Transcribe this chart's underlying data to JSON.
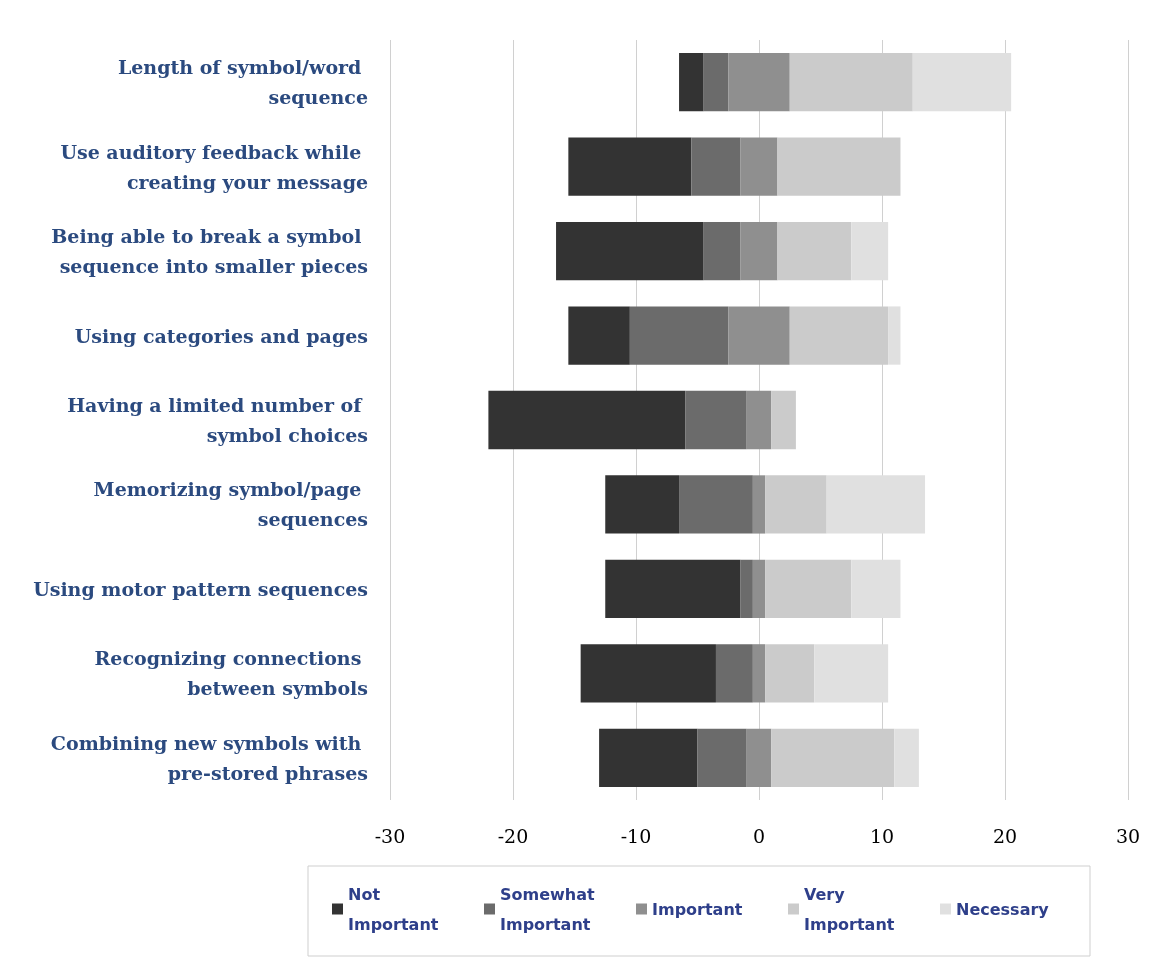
{
  "chart_data": {
    "type": "bar",
    "orientation": "horizontal",
    "categories": [
      "Length of symbol/word sequence",
      "Use auditory feedback while creating your message",
      "Being able to break a symbol sequence into smaller pieces",
      "Using categories and pages",
      "Having a limited number of symbol choices",
      "Memorizing symbol/page sequences",
      "Using motor pattern sequences",
      "Recognizing connections between symbols",
      "Combining new symbols with pre-stored phrases"
    ],
    "series": [
      {
        "name": "Not Important",
        "color": "#333333",
        "values": [
          2,
          10,
          12,
          5,
          16,
          6,
          11,
          11,
          8
        ],
        "base": [
          -6.5,
          -15.5,
          -16.5,
          -15.5,
          -22,
          -12.5,
          -12.5,
          -14.5,
          -13
        ]
      },
      {
        "name": "Somewhat Important",
        "color": "#6b6b6b",
        "values": [
          2,
          4,
          3,
          8,
          5,
          6,
          1,
          3,
          4
        ],
        "base": [
          -4.5,
          -5.5,
          -4.5,
          -10.5,
          -6,
          -6.5,
          -1.5,
          -3.5,
          -5
        ]
      },
      {
        "name": "Important",
        "color": "#8f8f8f",
        "values": [
          5,
          3,
          3,
          5,
          2,
          1,
          1,
          1,
          2
        ],
        "base": [
          -2.5,
          -1.5,
          -1.5,
          -2.5,
          -1,
          -0.5,
          -0.5,
          -0.5,
          -1
        ]
      },
      {
        "name": "Very Important",
        "color": "#cbcbcb",
        "values": [
          10,
          10,
          6,
          8,
          2,
          5,
          7,
          4,
          10
        ],
        "base": [
          2.5,
          1.5,
          1.5,
          2.5,
          1,
          0.5,
          0.5,
          0.5,
          1
        ]
      },
      {
        "name": "Necessary",
        "color": "#e0e0e0",
        "values": [
          8,
          null,
          3,
          1,
          null,
          8,
          4,
          6,
          2
        ],
        "base": [
          12.5,
          null,
          7.5,
          10.5,
          null,
          5.5,
          7.5,
          4.5,
          11
        ]
      }
    ],
    "xlim": [
      -30,
      30
    ],
    "xticks": [
      -30,
      -20,
      -10,
      0,
      10,
      20,
      30
    ],
    "grid": "x",
    "legend": "bottom"
  }
}
